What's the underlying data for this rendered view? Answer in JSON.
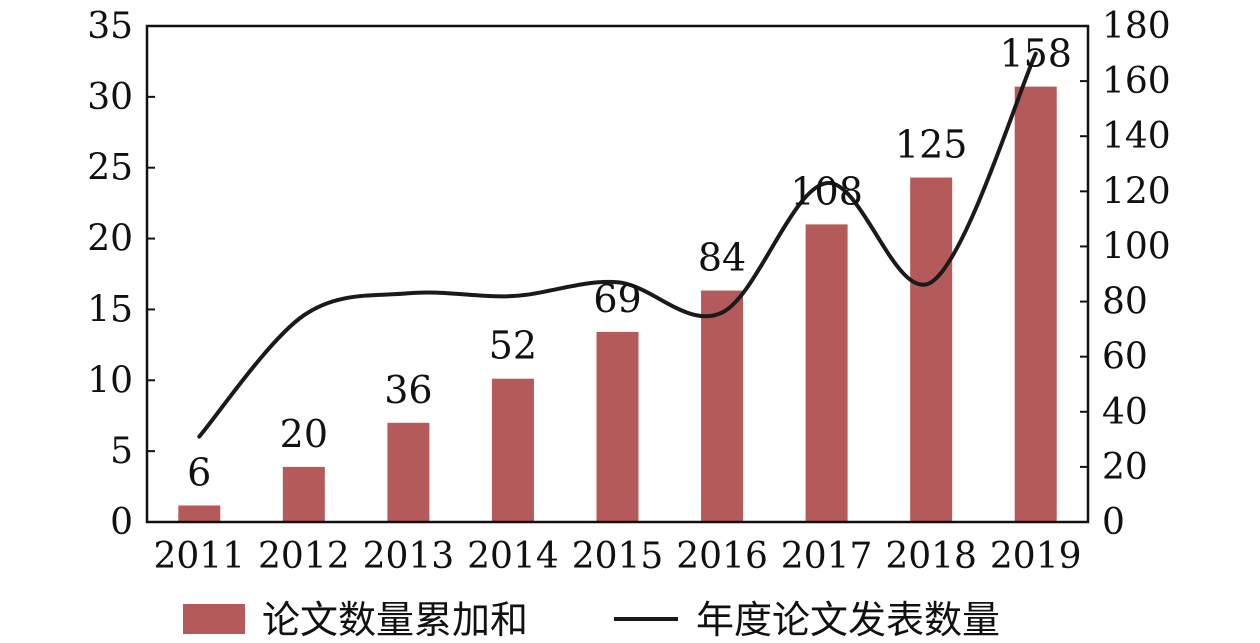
{
  "chart_data": {
    "type": "bar",
    "categories": [
      "2011",
      "2012",
      "2013",
      "2014",
      "2015",
      "2016",
      "2017",
      "2018",
      "2019"
    ],
    "series": [
      {
        "name": "论文数量累加和",
        "type": "bar",
        "axis": "right",
        "values": [
          6,
          20,
          36,
          52,
          69,
          84,
          108,
          125,
          158
        ],
        "color": "#b55a5a"
      },
      {
        "name": "年度论文发表数量",
        "type": "line",
        "axis": "right",
        "values": [
          31,
          75,
          83,
          82,
          87,
          76,
          123,
          87,
          170
        ],
        "color": "#1a1a1a"
      }
    ],
    "data_labels": [
      "6",
      "20",
      "36",
      "52",
      "69",
      "84",
      "108",
      "125",
      "158"
    ],
    "y_left": {
      "lim": [
        0,
        35
      ],
      "ticks": [
        "0",
        "5",
        "10",
        "15",
        "20",
        "25",
        "30",
        "35"
      ]
    },
    "y_right": {
      "lim": [
        0,
        180
      ],
      "ticks": [
        "0",
        "20",
        "40",
        "60",
        "80",
        "100",
        "120",
        "140",
        "160",
        "180"
      ]
    },
    "grid": false,
    "legend": "bottom"
  }
}
